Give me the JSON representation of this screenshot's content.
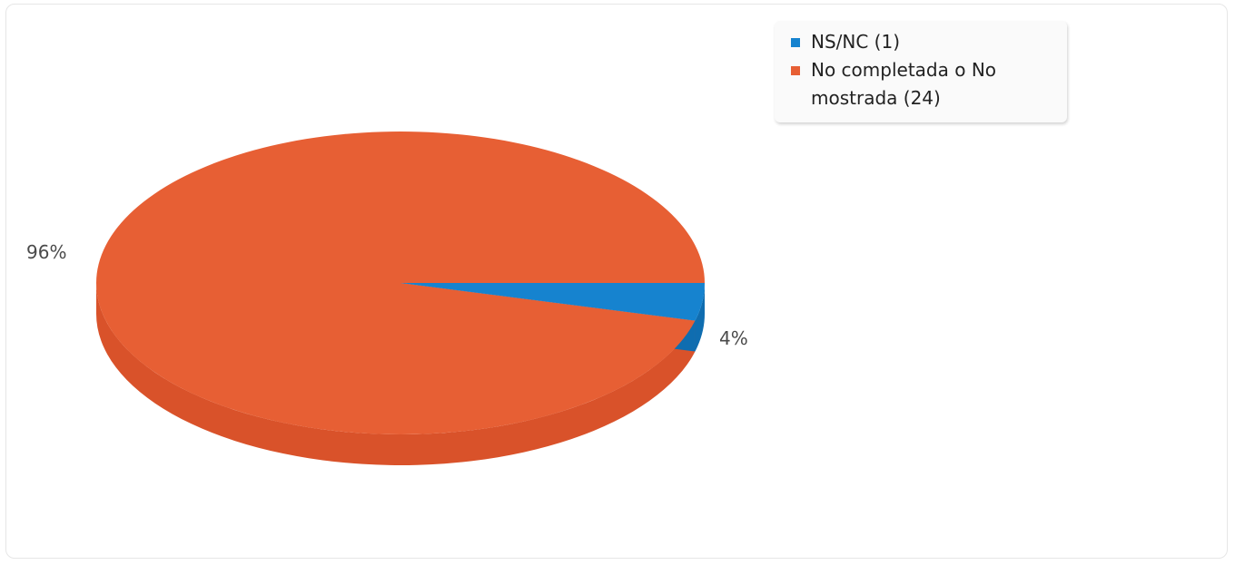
{
  "chart_data": {
    "type": "pie",
    "style": "3d",
    "series": [
      {
        "label": "NS/NC",
        "count": 1,
        "percent": 4,
        "color": "#1683cf",
        "legend_text": "NS/NC (1)",
        "pct_text": "4%"
      },
      {
        "label": "No completada o No mostrada",
        "count": 24,
        "percent": 96,
        "color": "#e75f34",
        "legend_text": "No completada o No mostrada (24)",
        "pct_text": "96%"
      }
    ],
    "legend_position": "top-right"
  },
  "colors": {
    "ns_nc": "#1683cf",
    "ns_nc_side": "#0f6db0",
    "no_completada": "#e75f34",
    "no_completada_side": "#d9522a"
  }
}
